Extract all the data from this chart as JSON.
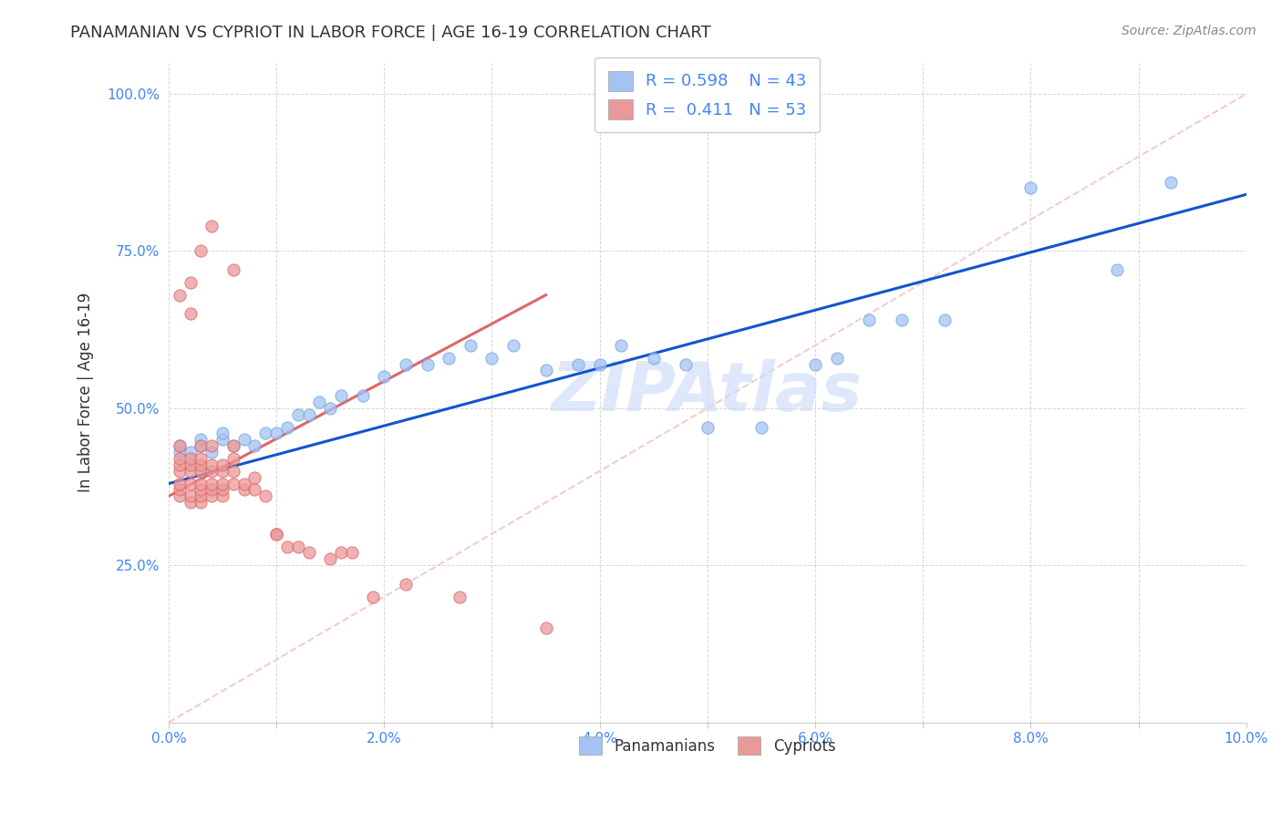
{
  "title": "PANAMANIAN VS CYPRIOT IN LABOR FORCE | AGE 16-19 CORRELATION CHART",
  "source": "Source: ZipAtlas.com",
  "ylabel": "In Labor Force | Age 16-19",
  "xlim": [
    0.0,
    0.1
  ],
  "ylim": [
    0.0,
    1.05
  ],
  "xticks": [
    0.0,
    0.01,
    0.02,
    0.03,
    0.04,
    0.05,
    0.06,
    0.07,
    0.08,
    0.09,
    0.1
  ],
  "yticks": [
    0.0,
    0.25,
    0.5,
    0.75,
    1.0
  ],
  "xticklabels": [
    "0.0%",
    "",
    "2.0%",
    "",
    "4.0%",
    "",
    "6.0%",
    "",
    "8.0%",
    "",
    "10.0%"
  ],
  "yticklabels": [
    "",
    "25.0%",
    "50.0%",
    "75.0%",
    "100.0%"
  ],
  "blue_color": "#a4c2f4",
  "pink_color": "#ea9999",
  "blue_line_color": "#1155cc",
  "pink_line_color": "#e06666",
  "diag_color": "#cccccc",
  "grid_color": "#cccccc",
  "axis_color": "#4285f4",
  "legend_R_blue": "0.598",
  "legend_N_blue": "43",
  "legend_R_pink": "0.411",
  "legend_N_pink": "53",
  "watermark": "ZIPAtlas",
  "blue_scatter_x": [
    0.001,
    0.001,
    0.002,
    0.003,
    0.003,
    0.004,
    0.005,
    0.005,
    0.006,
    0.007,
    0.008,
    0.009,
    0.01,
    0.011,
    0.012,
    0.013,
    0.014,
    0.015,
    0.016,
    0.018,
    0.02,
    0.022,
    0.024,
    0.026,
    0.028,
    0.03,
    0.032,
    0.035,
    0.038,
    0.04,
    0.042,
    0.045,
    0.048,
    0.05,
    0.055,
    0.06,
    0.062,
    0.065,
    0.068,
    0.072,
    0.08,
    0.088,
    0.093
  ],
  "blue_scatter_y": [
    0.43,
    0.44,
    0.43,
    0.44,
    0.45,
    0.43,
    0.45,
    0.46,
    0.44,
    0.45,
    0.44,
    0.46,
    0.46,
    0.47,
    0.49,
    0.49,
    0.51,
    0.5,
    0.52,
    0.52,
    0.55,
    0.57,
    0.57,
    0.58,
    0.6,
    0.58,
    0.6,
    0.56,
    0.57,
    0.57,
    0.6,
    0.58,
    0.57,
    0.47,
    0.47,
    0.57,
    0.58,
    0.64,
    0.64,
    0.64,
    0.85,
    0.72,
    0.86
  ],
  "pink_scatter_x": [
    0.001,
    0.001,
    0.001,
    0.001,
    0.001,
    0.001,
    0.001,
    0.002,
    0.002,
    0.002,
    0.002,
    0.002,
    0.002,
    0.003,
    0.003,
    0.003,
    0.003,
    0.003,
    0.003,
    0.003,
    0.003,
    0.004,
    0.004,
    0.004,
    0.004,
    0.004,
    0.004,
    0.005,
    0.005,
    0.005,
    0.005,
    0.005,
    0.006,
    0.006,
    0.006,
    0.006,
    0.007,
    0.007,
    0.008,
    0.008,
    0.009,
    0.01,
    0.01,
    0.011,
    0.012,
    0.013,
    0.015,
    0.016,
    0.017,
    0.019,
    0.022,
    0.027,
    0.035
  ],
  "pink_scatter_y": [
    0.36,
    0.37,
    0.38,
    0.4,
    0.41,
    0.42,
    0.44,
    0.35,
    0.36,
    0.38,
    0.4,
    0.41,
    0.42,
    0.35,
    0.36,
    0.37,
    0.38,
    0.4,
    0.41,
    0.42,
    0.44,
    0.36,
    0.37,
    0.38,
    0.4,
    0.41,
    0.44,
    0.36,
    0.37,
    0.38,
    0.4,
    0.41,
    0.38,
    0.4,
    0.42,
    0.44,
    0.37,
    0.38,
    0.37,
    0.39,
    0.36,
    0.3,
    0.3,
    0.28,
    0.28,
    0.27,
    0.26,
    0.27,
    0.27,
    0.2,
    0.22,
    0.2,
    0.15
  ],
  "pink_scatter_extra_x": [
    0.001,
    0.002,
    0.003,
    0.004,
    0.002,
    0.006
  ],
  "pink_scatter_extra_y": [
    0.68,
    0.7,
    0.75,
    0.79,
    0.65,
    0.72
  ],
  "blue_line_x": [
    0.0,
    0.1
  ],
  "blue_line_y": [
    0.38,
    0.84
  ],
  "pink_line_x": [
    0.0,
    0.035
  ],
  "pink_line_y": [
    0.36,
    0.68
  ],
  "diag_line_x": [
    0.0,
    0.1
  ],
  "diag_line_y": [
    0.0,
    1.0
  ]
}
